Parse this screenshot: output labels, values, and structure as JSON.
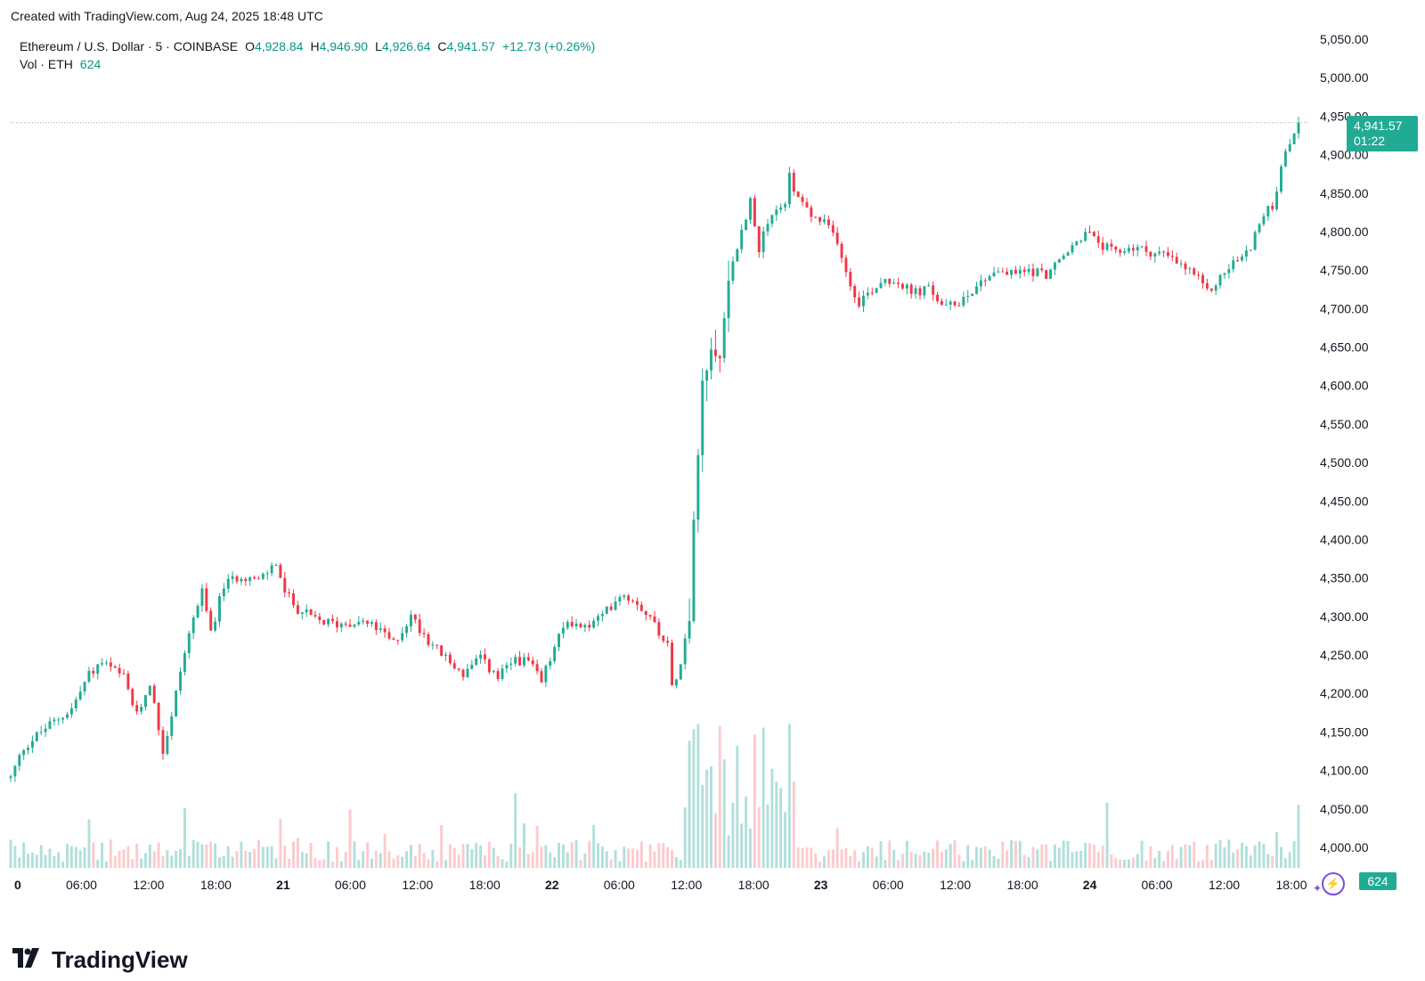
{
  "created_text": "Created with TradingView.com, Aug 24, 2025 18:48 UTC",
  "legend": {
    "symbol": "Ethereum / U.S. Dollar · 5 · COINBASE",
    "o_label": "O",
    "o_value": "4,928.84",
    "h_label": "H",
    "h_value": "4,946.90",
    "l_label": "L",
    "l_value": "4,926.64",
    "c_label": "C",
    "c_value": "4,941.57",
    "change": "+12.73 (+0.26%)",
    "vol_label": "Vol · ETH",
    "vol_value": "624"
  },
  "price_tag": {
    "price": "4,941.57",
    "countdown": "01:22"
  },
  "vol_tag": "624",
  "brand": {
    "logo": "17",
    "name": "TradingView"
  },
  "colors": {
    "up": "#22ab94",
    "down": "#f23645",
    "up_vol": "#b2dfdb",
    "down_vol": "#fccbcd",
    "text": "#131722"
  },
  "chart_data": {
    "type": "candlestick",
    "ylim": [
      3990,
      5065
    ],
    "last_price": 4941.57,
    "y_ticks": [
      "5,050.00",
      "5,000.00",
      "4,950.00",
      "4,900.00",
      "4,850.00",
      "4,800.00",
      "4,750.00",
      "4,700.00",
      "4,650.00",
      "4,600.00",
      "4,550.00",
      "4,500.00",
      "4,450.00",
      "4,400.00",
      "4,350.00",
      "4,300.00",
      "4,250.00",
      "4,200.00",
      "4,150.00",
      "4,100.00",
      "4,050.00",
      "4,000.00"
    ],
    "x_ticks": [
      {
        "label": "0",
        "bold": true
      },
      {
        "label": "06:00",
        "bold": false
      },
      {
        "label": "12:00",
        "bold": false
      },
      {
        "label": "18:00",
        "bold": false
      },
      {
        "label": "21",
        "bold": true
      },
      {
        "label": "06:00",
        "bold": false
      },
      {
        "label": "12:00",
        "bold": false
      },
      {
        "label": "18:00",
        "bold": false
      },
      {
        "label": "22",
        "bold": true
      },
      {
        "label": "06:00",
        "bold": false
      },
      {
        "label": "12:00",
        "bold": false
      },
      {
        "label": "18:00",
        "bold": false
      },
      {
        "label": "23",
        "bold": true
      },
      {
        "label": "06:00",
        "bold": false
      },
      {
        "label": "12:00",
        "bold": false
      },
      {
        "label": "18:00",
        "bold": false
      },
      {
        "label": "24",
        "bold": true
      },
      {
        "label": "06:00",
        "bold": false
      },
      {
        "label": "12:00",
        "bold": false
      },
      {
        "label": "18:00",
        "bold": false
      }
    ],
    "price_path": [
      [
        0,
        4090
      ],
      [
        3,
        4130
      ],
      [
        8,
        4155
      ],
      [
        14,
        4180
      ],
      [
        18,
        4225
      ],
      [
        21,
        4240
      ],
      [
        26,
        4220
      ],
      [
        29,
        4170
      ],
      [
        32,
        4215
      ],
      [
        35,
        4125
      ],
      [
        37,
        4170
      ],
      [
        39,
        4230
      ],
      [
        42,
        4300
      ],
      [
        44,
        4330
      ],
      [
        46,
        4280
      ],
      [
        49,
        4340
      ],
      [
        53,
        4355
      ],
      [
        57,
        4345
      ],
      [
        61,
        4370
      ],
      [
        63,
        4330
      ],
      [
        66,
        4310
      ],
      [
        70,
        4295
      ],
      [
        75,
        4290
      ],
      [
        80,
        4295
      ],
      [
        84,
        4285
      ],
      [
        88,
        4265
      ],
      [
        92,
        4300
      ],
      [
        96,
        4270
      ],
      [
        100,
        4245
      ],
      [
        104,
        4225
      ],
      [
        108,
        4245
      ],
      [
        112,
        4220
      ],
      [
        116,
        4245
      ],
      [
        119,
        4240
      ],
      [
        122,
        4215
      ],
      [
        125,
        4260
      ],
      [
        128,
        4295
      ],
      [
        132,
        4285
      ],
      [
        136,
        4300
      ],
      [
        140,
        4330
      ],
      [
        144,
        4320
      ],
      [
        148,
        4290
      ],
      [
        151,
        4265
      ],
      [
        152,
        4205
      ],
      [
        154,
        4245
      ],
      [
        156,
        4300
      ],
      [
        157,
        4420
      ],
      [
        159,
        4600
      ],
      [
        161,
        4640
      ],
      [
        163,
        4640
      ],
      [
        165,
        4740
      ],
      [
        168,
        4800
      ],
      [
        170,
        4840
      ],
      [
        172,
        4780
      ],
      [
        175,
        4820
      ],
      [
        178,
        4840
      ],
      [
        179,
        4870
      ],
      [
        181,
        4845
      ],
      [
        184,
        4820
      ],
      [
        187,
        4810
      ],
      [
        190,
        4790
      ],
      [
        193,
        4730
      ],
      [
        195,
        4710
      ],
      [
        198,
        4725
      ],
      [
        201,
        4740
      ],
      [
        204,
        4735
      ],
      [
        207,
        4720
      ],
      [
        211,
        4725
      ],
      [
        215,
        4700
      ],
      [
        218,
        4710
      ],
      [
        222,
        4730
      ],
      [
        226,
        4750
      ],
      [
        230,
        4745
      ],
      [
        234,
        4750
      ],
      [
        238,
        4745
      ],
      [
        241,
        4760
      ],
      [
        244,
        4780
      ],
      [
        247,
        4800
      ],
      [
        250,
        4785
      ],
      [
        254,
        4770
      ],
      [
        257,
        4780
      ],
      [
        261,
        4775
      ],
      [
        265,
        4770
      ],
      [
        269,
        4755
      ],
      [
        272,
        4745
      ],
      [
        275,
        4720
      ],
      [
        278,
        4740
      ],
      [
        281,
        4760
      ],
      [
        284,
        4770
      ],
      [
        287,
        4810
      ],
      [
        290,
        4835
      ],
      [
        293,
        4900
      ],
      [
        295,
        4930
      ],
      [
        296,
        4941.57
      ]
    ],
    "n_candles": 297,
    "volume_max": 1500,
    "last_volume": 624
  }
}
